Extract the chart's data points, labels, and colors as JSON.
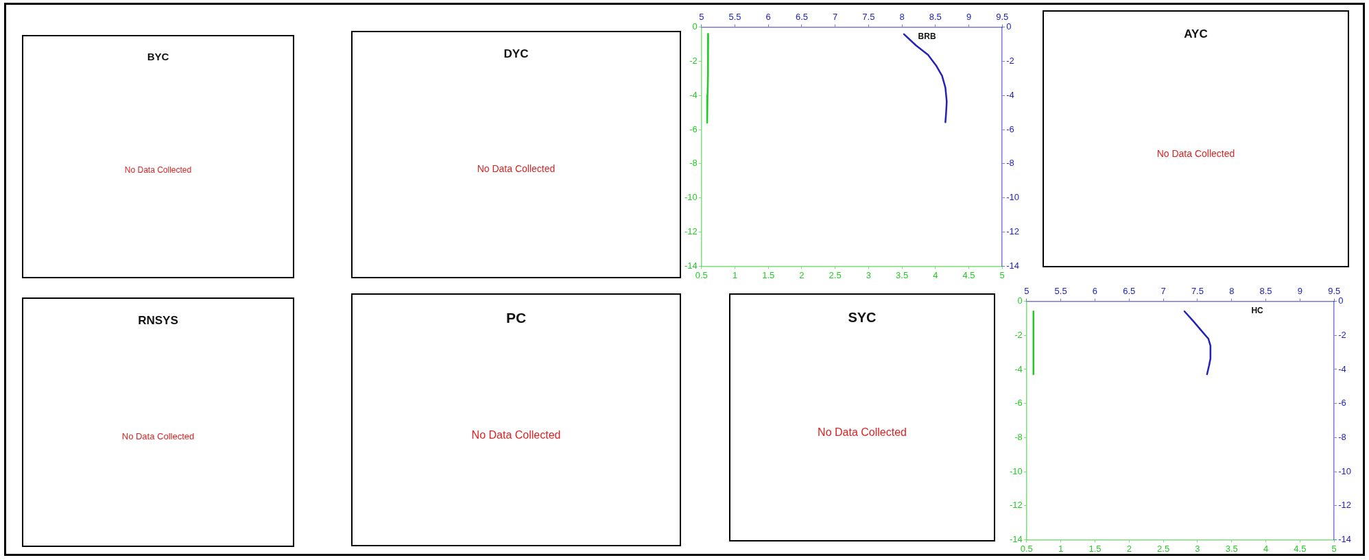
{
  "chart_data": [
    {
      "type": "other",
      "title": "BYC",
      "annotations": [
        "No Data Collected"
      ]
    },
    {
      "type": "other",
      "title": "DYC",
      "annotations": [
        "No Data Collected"
      ]
    },
    {
      "type": "line",
      "title": "BRB",
      "xlim": [
        0.5,
        5
      ],
      "xticks": [
        0.5,
        1,
        1.5,
        2,
        2.5,
        3,
        3.5,
        4,
        4.5,
        5
      ],
      "x2lim": [
        5,
        9.5
      ],
      "x2ticks": [
        5,
        5.5,
        6,
        6.5,
        7,
        7.5,
        8,
        8.5,
        9,
        9.5
      ],
      "ylim": [
        -14,
        0
      ],
      "yticks": [
        -14,
        -12,
        -10,
        -8,
        -6,
        -4,
        -2,
        0
      ],
      "y2lim": [
        -14,
        0
      ],
      "y2ticks": [
        -14,
        -12,
        -10,
        -8,
        -6,
        -4,
        -2,
        0
      ],
      "marker": "none",
      "series": [
        {
          "color": "#22cc22",
          "x": [
            0.6,
            0.6,
            0.595,
            0.59,
            0.585
          ],
          "values": [
            -0.4,
            -1.5,
            -2.8,
            -4,
            -5.6
          ]
        },
        {
          "color": "#2222bb",
          "axis": "x2",
          "x": [
            8.03,
            8.21,
            8.39,
            8.51,
            8.6,
            8.65,
            8.67,
            8.66,
            8.65
          ],
          "values": [
            -0.41,
            -1.07,
            -1.62,
            -2.24,
            -2.85,
            -3.54,
            -4.36,
            -5.05,
            -5.57
          ]
        }
      ]
    },
    {
      "type": "other",
      "title": "AYC",
      "annotations": [
        "No Data Collected"
      ]
    },
    {
      "type": "other",
      "title": "RNSYS",
      "annotations": [
        "No Data Collected"
      ]
    },
    {
      "type": "other",
      "title": "PC",
      "annotations": [
        "No Data Collected"
      ]
    },
    {
      "type": "other",
      "title": "SYC",
      "annotations": [
        "No Data Collected"
      ]
    },
    {
      "type": "line",
      "title": "HC",
      "xlim": [
        0.5,
        5
      ],
      "xticks": [
        0.5,
        1,
        1.5,
        2,
        2.5,
        3,
        3.5,
        4,
        4.5,
        5
      ],
      "x2lim": [
        5,
        9.5
      ],
      "x2ticks": [
        5,
        5.5,
        6,
        6.5,
        7,
        7.5,
        8,
        8.5,
        9,
        9.5
      ],
      "ylim": [
        -14,
        0
      ],
      "yticks": [
        -14,
        -12,
        -10,
        -8,
        -6,
        -4,
        -2,
        0
      ],
      "y2lim": [
        -14,
        0
      ],
      "y2ticks": [
        -14,
        -12,
        -10,
        -8,
        -6,
        -4,
        -2,
        0
      ],
      "marker": "none",
      "series": [
        {
          "color": "#22cc22",
          "x": [
            0.6,
            0.6,
            0.6,
            0.6
          ],
          "values": [
            -0.59,
            -1.8,
            -3,
            -4.28
          ]
        },
        {
          "color": "#2222bb",
          "axis": "x2",
          "x": [
            7.31,
            7.44,
            7.57,
            7.66,
            7.69,
            7.69,
            7.67,
            7.64
          ],
          "values": [
            -0.59,
            -1.17,
            -1.78,
            -2.2,
            -2.61,
            -3.36,
            -3.77,
            -4.28
          ]
        }
      ]
    }
  ]
}
